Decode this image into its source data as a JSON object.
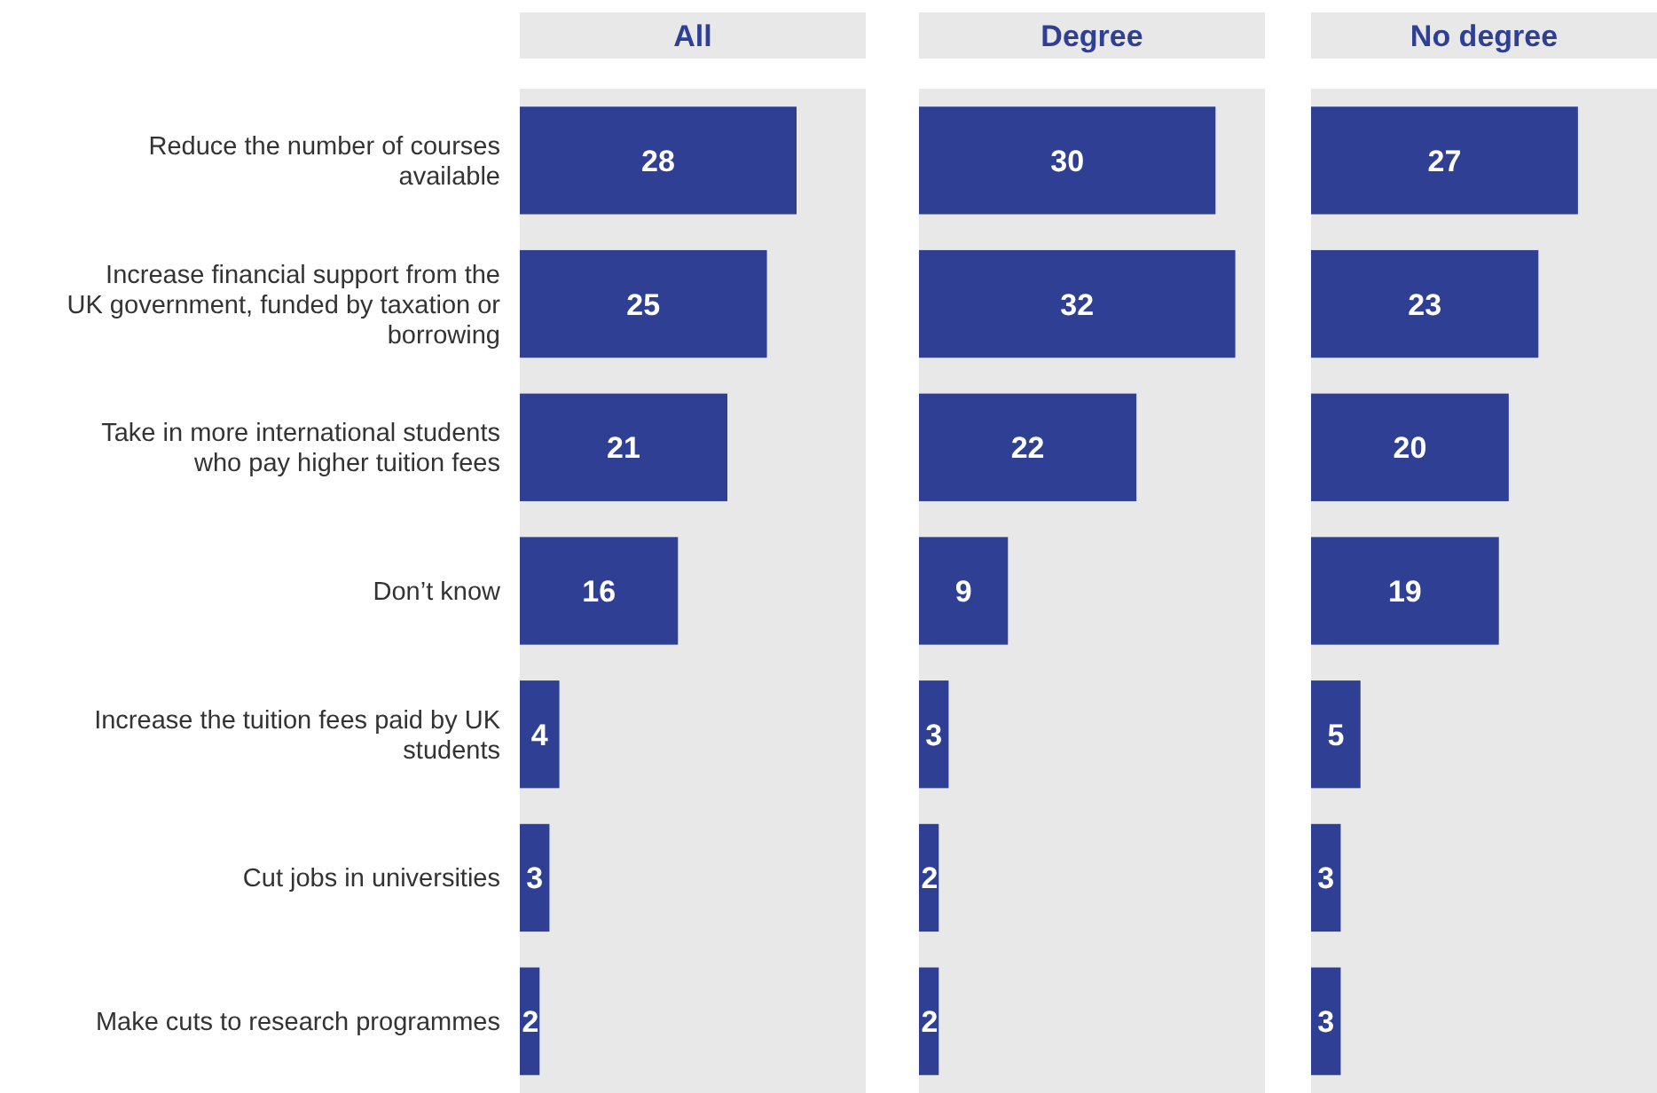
{
  "chart_data": [
    {
      "type": "bar",
      "orientation": "horizontal",
      "title": "All",
      "categories": [
        "Reduce the number of courses available",
        "Increase financial support from the UK government, funded by taxation or borrowing",
        "Take in more international students who pay higher tuition fees",
        "Don’t know",
        "Increase the tuition fees paid by UK students",
        "Cut jobs in universities",
        "Make cuts to research programmes"
      ],
      "values": [
        28,
        25,
        21,
        16,
        4,
        3,
        2
      ],
      "color": "#2e3f94",
      "xlim": [
        0,
        35
      ],
      "data_labels": true,
      "tick_labels": "y"
    },
    {
      "type": "bar",
      "orientation": "horizontal",
      "title": "Degree",
      "categories": [
        null,
        null,
        null,
        null,
        null,
        null,
        null
      ],
      "values": [
        30,
        32,
        22,
        9,
        3,
        2,
        2
      ],
      "color": "#2e3f94",
      "xlim": [
        0,
        35
      ],
      "data_labels": true
    },
    {
      "type": "bar",
      "orientation": "horizontal",
      "title": "No degree",
      "categories": [
        null,
        null,
        null,
        null,
        null,
        null,
        null
      ],
      "values": [
        27,
        23,
        20,
        19,
        5,
        3,
        3
      ],
      "color": "#2e3f94",
      "xlim": [
        0,
        35
      ],
      "data_labels": true
    }
  ]
}
